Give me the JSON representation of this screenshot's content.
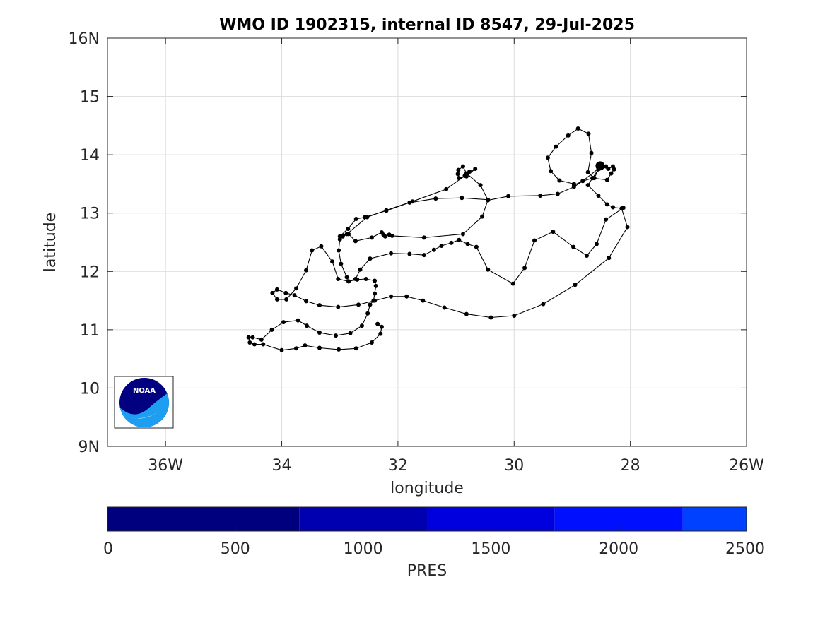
{
  "chart_data": {
    "type": "line",
    "title": "WMO ID 1902315, internal ID 8547, 29-Jul-2025",
    "xlabel": "longitude",
    "ylabel": "latitude",
    "xlim": [
      -37,
      -26
    ],
    "ylim": [
      9,
      16
    ],
    "grid": true,
    "x_ticks": [
      {
        "value": -36,
        "label": "36W"
      },
      {
        "value": -34,
        "label": "34"
      },
      {
        "value": -32,
        "label": "32"
      },
      {
        "value": -30,
        "label": "30"
      },
      {
        "value": -28,
        "label": "28"
      },
      {
        "value": -26,
        "label": "26W"
      }
    ],
    "y_ticks": [
      {
        "value": 9,
        "label": "9N"
      },
      {
        "value": 10,
        "label": "10"
      },
      {
        "value": 11,
        "label": "11"
      },
      {
        "value": 12,
        "label": "12"
      },
      {
        "value": 13,
        "label": "13"
      },
      {
        "value": 14,
        "label": "14"
      },
      {
        "value": 15,
        "label": "15"
      },
      {
        "value": 16,
        "label": "16N"
      }
    ],
    "series": [
      {
        "line_color": "#000000",
        "marker_color": "#000000",
        "points": [
          [
            -32.35,
            11.1
          ],
          [
            -32.28,
            11.05
          ],
          [
            -32.3,
            10.93
          ],
          [
            -32.45,
            10.78
          ],
          [
            -32.72,
            10.68
          ],
          [
            -33.02,
            10.66
          ],
          [
            -33.35,
            10.69
          ],
          [
            -33.6,
            10.73
          ],
          [
            -33.75,
            10.68
          ],
          [
            -34.0,
            10.65
          ],
          [
            -34.32,
            10.75
          ],
          [
            -34.47,
            10.75
          ],
          [
            -34.55,
            10.78
          ],
          [
            -34.57,
            10.87
          ],
          [
            -34.5,
            10.87
          ],
          [
            -34.35,
            10.83
          ],
          [
            -34.17,
            11.0
          ],
          [
            -33.97,
            11.13
          ],
          [
            -33.72,
            11.16
          ],
          [
            -33.57,
            11.07
          ],
          [
            -33.35,
            10.95
          ],
          [
            -33.07,
            10.9
          ],
          [
            -32.82,
            10.94
          ],
          [
            -32.62,
            11.07
          ],
          [
            -32.52,
            11.28
          ],
          [
            -32.48,
            11.43
          ],
          [
            -32.42,
            11.5
          ],
          [
            -32.4,
            11.62
          ],
          [
            -32.38,
            11.75
          ],
          [
            -32.4,
            11.84
          ],
          [
            -32.55,
            11.87
          ],
          [
            -32.7,
            11.86
          ],
          [
            -32.85,
            11.83
          ],
          [
            -32.88,
            11.9
          ],
          [
            -32.98,
            12.13
          ],
          [
            -33.02,
            12.36
          ],
          [
            -33.0,
            12.55
          ],
          [
            -32.95,
            12.6
          ],
          [
            -32.85,
            12.64
          ],
          [
            -32.73,
            12.52
          ],
          [
            -32.45,
            12.58
          ],
          [
            -32.28,
            12.67
          ],
          [
            -32.25,
            12.63
          ],
          [
            -32.22,
            12.6
          ],
          [
            -32.15,
            12.63
          ],
          [
            -32.1,
            12.61
          ],
          [
            -31.55,
            12.58
          ],
          [
            -30.88,
            12.64
          ],
          [
            -30.55,
            12.94
          ],
          [
            -30.45,
            13.23
          ],
          [
            -30.9,
            13.26
          ],
          [
            -31.35,
            13.25
          ],
          [
            -31.8,
            13.18
          ],
          [
            -32.2,
            13.04
          ],
          [
            -32.57,
            12.93
          ],
          [
            -32.72,
            12.9
          ],
          [
            -32.86,
            12.73
          ],
          [
            -33.0,
            12.6
          ],
          [
            -32.88,
            12.64
          ],
          [
            -32.53,
            12.93
          ],
          [
            -32.2,
            13.05
          ],
          [
            -31.75,
            13.2
          ],
          [
            -31.17,
            13.41
          ],
          [
            -30.85,
            13.64
          ],
          [
            -30.77,
            13.71
          ],
          [
            -30.67,
            13.76
          ],
          [
            -30.82,
            13.63
          ],
          [
            -30.95,
            13.6
          ],
          [
            -30.97,
            13.67
          ],
          [
            -30.96,
            13.74
          ],
          [
            -30.88,
            13.8
          ],
          [
            -30.82,
            13.68
          ],
          [
            -30.58,
            13.48
          ],
          [
            -30.45,
            13.22
          ],
          [
            -30.1,
            13.29
          ],
          [
            -29.55,
            13.3
          ],
          [
            -29.25,
            13.33
          ],
          [
            -28.97,
            13.45
          ],
          [
            -28.82,
            13.55
          ],
          [
            -28.65,
            13.6
          ],
          [
            -28.55,
            13.75
          ],
          [
            -28.52,
            13.81
          ],
          [
            -28.62,
            13.6
          ],
          [
            -28.73,
            13.7
          ],
          [
            -28.67,
            14.03
          ],
          [
            -28.72,
            14.36
          ],
          [
            -28.9,
            14.45
          ],
          [
            -29.07,
            14.33
          ],
          [
            -29.28,
            14.14
          ],
          [
            -29.42,
            13.95
          ],
          [
            -29.37,
            13.72
          ],
          [
            -29.22,
            13.56
          ],
          [
            -28.97,
            13.5
          ],
          [
            -28.97,
            13.48
          ],
          [
            -28.82,
            13.55
          ],
          [
            -28.5,
            13.8
          ],
          [
            -28.42,
            13.8
          ],
          [
            -28.38,
            13.76
          ],
          [
            -28.3,
            13.8
          ],
          [
            -28.28,
            13.75
          ],
          [
            -28.33,
            13.68
          ],
          [
            -28.4,
            13.57
          ],
          [
            -28.65,
            13.6
          ],
          [
            -28.73,
            13.48
          ],
          [
            -28.55,
            13.3
          ],
          [
            -28.4,
            13.15
          ],
          [
            -28.3,
            13.1
          ],
          [
            -28.15,
            13.08
          ],
          [
            -28.05,
            12.76
          ],
          [
            -28.37,
            12.23
          ],
          [
            -28.95,
            11.77
          ],
          [
            -29.5,
            11.44
          ],
          [
            -30.0,
            11.24
          ],
          [
            -30.4,
            11.21
          ],
          [
            -30.82,
            11.27
          ],
          [
            -31.2,
            11.38
          ],
          [
            -31.57,
            11.5
          ],
          [
            -31.85,
            11.57
          ],
          [
            -32.12,
            11.57
          ],
          [
            -32.4,
            11.5
          ],
          [
            -32.68,
            11.43
          ],
          [
            -33.03,
            11.39
          ],
          [
            -33.35,
            11.42
          ],
          [
            -33.58,
            11.49
          ],
          [
            -33.78,
            11.59
          ],
          [
            -33.93,
            11.63
          ],
          [
            -34.08,
            11.69
          ],
          [
            -34.16,
            11.63
          ],
          [
            -34.08,
            11.52
          ],
          [
            -33.92,
            11.52
          ],
          [
            -33.75,
            11.71
          ],
          [
            -33.58,
            12.02
          ],
          [
            -33.48,
            12.36
          ],
          [
            -33.32,
            12.43
          ],
          [
            -33.13,
            12.17
          ],
          [
            -33.03,
            11.87
          ],
          [
            -32.85,
            11.83
          ],
          [
            -32.73,
            11.87
          ],
          [
            -32.65,
            12.03
          ],
          [
            -32.48,
            12.22
          ],
          [
            -32.12,
            12.31
          ],
          [
            -31.8,
            12.3
          ],
          [
            -31.55,
            12.28
          ],
          [
            -31.38,
            12.37
          ],
          [
            -31.25,
            12.44
          ],
          [
            -31.08,
            12.49
          ],
          [
            -30.95,
            12.54
          ],
          [
            -30.8,
            12.47
          ],
          [
            -30.65,
            12.42
          ],
          [
            -30.45,
            12.03
          ],
          [
            -30.02,
            11.79
          ],
          [
            -29.82,
            12.06
          ],
          [
            -29.65,
            12.53
          ],
          [
            -29.33,
            12.68
          ],
          [
            -28.98,
            12.42
          ],
          [
            -28.75,
            12.27
          ],
          [
            -28.58,
            12.47
          ],
          [
            -28.42,
            12.89
          ],
          [
            -28.12,
            13.09
          ]
        ]
      }
    ],
    "last_position": {
      "x": -28.52,
      "y": 13.81
    },
    "colorbar": {
      "label": "PRES",
      "range": [
        0,
        2500
      ],
      "ticks": [
        "0",
        "500",
        "1000",
        "1500",
        "2000",
        "2500"
      ],
      "segments": [
        {
          "from": 0,
          "to": 750,
          "color": "#00007f"
        },
        {
          "from": 750,
          "to": 1250,
          "color": "#0000b0"
        },
        {
          "from": 1250,
          "to": 1750,
          "color": "#0000de"
        },
        {
          "from": 1750,
          "to": 2250,
          "color": "#0010ff"
        },
        {
          "from": 2250,
          "to": 2500,
          "color": "#0040ff"
        }
      ]
    },
    "logo_text": "NOAA",
    "colors": {
      "logo_dark": "#000080",
      "logo_light": "#1e9ef0"
    }
  }
}
